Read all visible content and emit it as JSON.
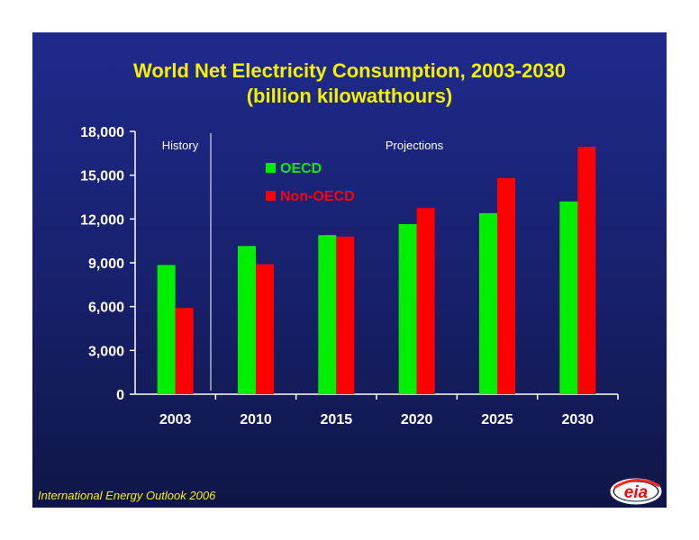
{
  "colors": {
    "oecd": "#00ee00",
    "non_oecd": "#ff0000",
    "title": "#f6f000",
    "axis": "#ffffff"
  },
  "chart_data": {
    "type": "bar",
    "title": "World Net Electricity Consumption, 2003-2030",
    "subtitle": "(billion kilowatthours)",
    "categories": [
      "2003",
      "2010",
      "2015",
      "2020",
      "2025",
      "2030"
    ],
    "series": [
      {
        "name": "OECD",
        "values": [
          8850,
          10150,
          10900,
          11650,
          12400,
          13200
        ]
      },
      {
        "name": "Non-OECD",
        "values": [
          5900,
          8900,
          10800,
          12750,
          14800,
          16950
        ]
      }
    ],
    "ylim": [
      0,
      18000
    ],
    "yticks": [
      "0",
      "3,000",
      "6,000",
      "9,000",
      "12,000",
      "15,000",
      "18,000"
    ],
    "yticks_values": [
      0,
      3000,
      6000,
      9000,
      12000,
      15000,
      18000
    ],
    "grid": false,
    "legend_position": "top-center",
    "annotations": {
      "history": "History",
      "projections": "Projections"
    }
  },
  "footer": {
    "source": "International Energy Outlook 2006",
    "logo_text": "eia",
    "logo_icon": "eia-logo-icon"
  }
}
